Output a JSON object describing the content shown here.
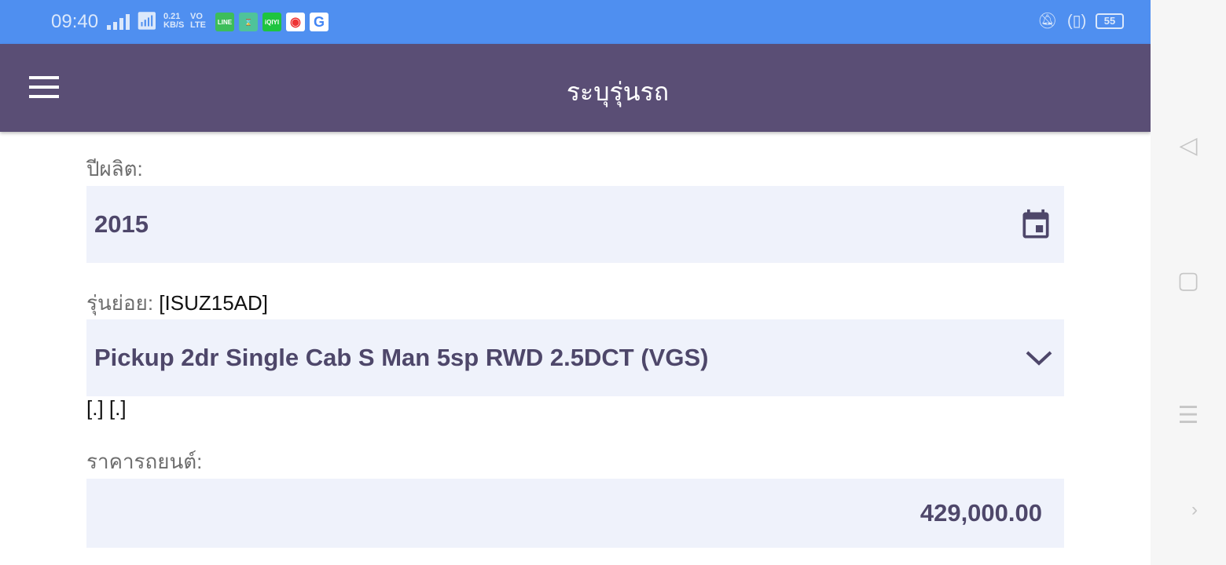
{
  "status_bar": {
    "time": "09:40",
    "net_speed": "0.21",
    "net_unit": "KB/S",
    "vo": "VO",
    "lte": "LTE",
    "apps": [
      "LINE",
      "app",
      "iQIYI",
      "Chrome",
      "Google"
    ],
    "battery": "55"
  },
  "header": {
    "title": "ระบุรุ่นรถ",
    "menu_icon": "hamburger-icon"
  },
  "form": {
    "year_label": "ปีผลิต:",
    "year_value": "2015",
    "submodel_label": "รุ่นย่อย:",
    "submodel_code": "[ISUZ15AD]",
    "submodel_value": "Pickup 2dr Single Cab S Man 5sp RWD 2.5DCT (VGS)",
    "extra_text": "[.] [.]",
    "price_label": "ราคารถยนต์:",
    "price_value": "429,000.00"
  },
  "colors": {
    "status_bar": "#4f8ff0",
    "header": "#5a4e75",
    "field_bg": "#eff2fb",
    "field_text": "#4e476a"
  }
}
